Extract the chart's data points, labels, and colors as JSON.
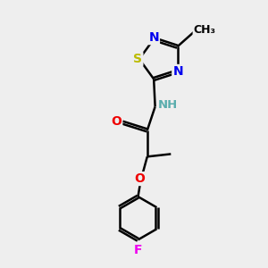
{
  "bg_color": "#eeeeee",
  "atom_colors": {
    "C": "#000000",
    "H": "#5aadad",
    "N": "#0000ee",
    "O": "#ee0000",
    "S": "#bbbb00",
    "F": "#ee00ee"
  },
  "bond_color": "#000000",
  "bond_width": 1.8,
  "figsize": [
    3.0,
    3.0
  ],
  "dpi": 100
}
